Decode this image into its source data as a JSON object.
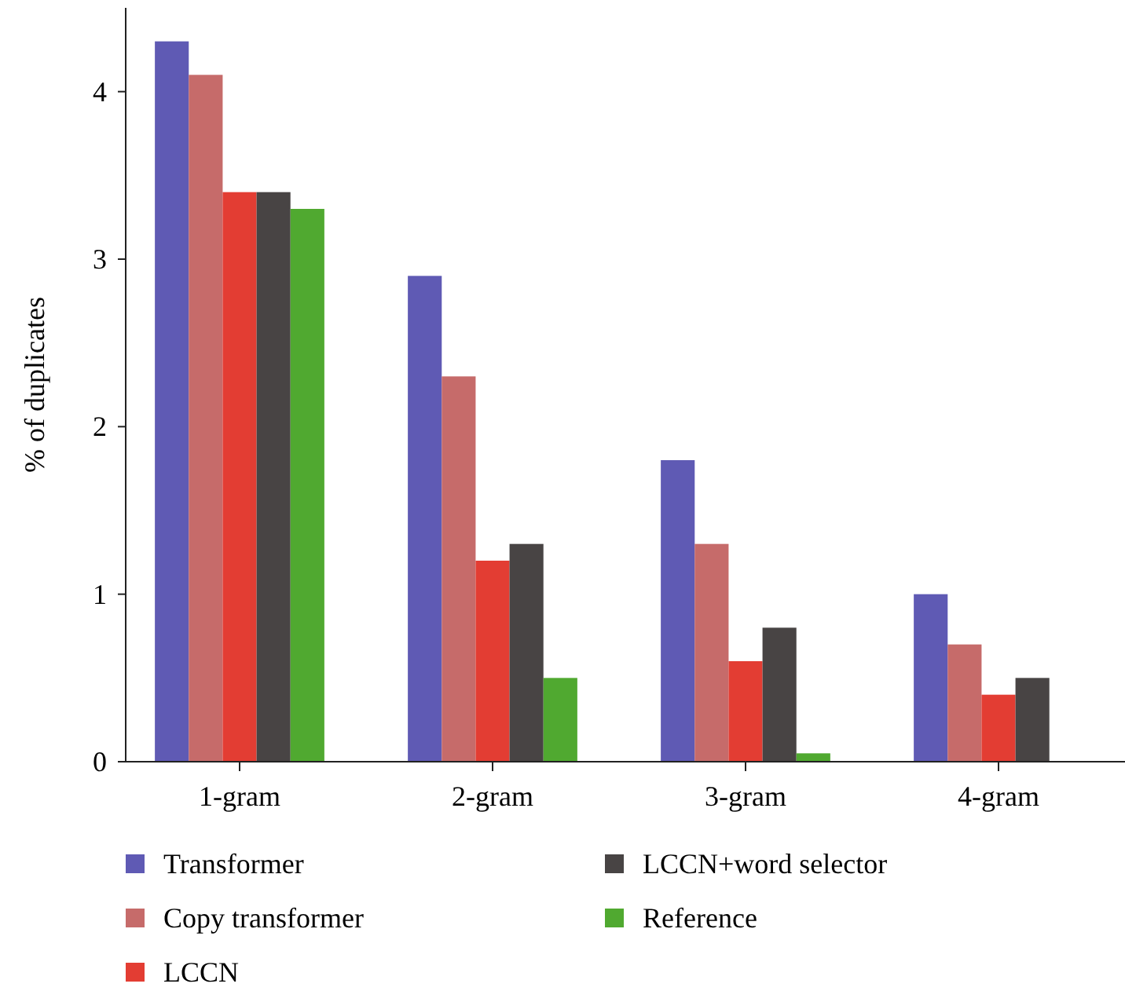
{
  "chart_data": {
    "type": "bar",
    "ylabel": "% of duplicates",
    "categories": [
      "1-gram",
      "2-gram",
      "3-gram",
      "4-gram"
    ],
    "series": [
      {
        "name": "Transformer",
        "color": "#5f5ab4",
        "values": [
          4.3,
          2.9,
          1.8,
          1.0
        ]
      },
      {
        "name": "Copy transformer",
        "color": "#c66b6a",
        "values": [
          4.1,
          2.3,
          1.3,
          0.7
        ]
      },
      {
        "name": "LCCN",
        "color": "#e33d33",
        "values": [
          3.4,
          1.2,
          0.6,
          0.4
        ]
      },
      {
        "name": "LCCN+word selector",
        "color": "#484444",
        "values": [
          3.4,
          1.3,
          0.8,
          0.5
        ]
      },
      {
        "name": "Reference",
        "color": "#50a930",
        "values": [
          3.3,
          0.5,
          0.05,
          null
        ]
      }
    ],
    "ylim": [
      0,
      4.5
    ],
    "yticks": [
      0,
      1,
      2,
      3,
      4
    ],
    "grid": false,
    "legend": "bottom"
  }
}
